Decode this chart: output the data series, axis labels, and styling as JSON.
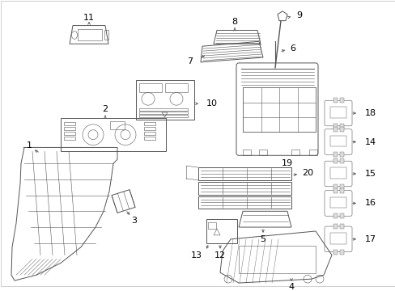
{
  "bg_color": "#ffffff",
  "line_color": "#555555",
  "label_color": "#000000",
  "figsize": [
    4.89,
    3.6
  ],
  "dpi": 100
}
